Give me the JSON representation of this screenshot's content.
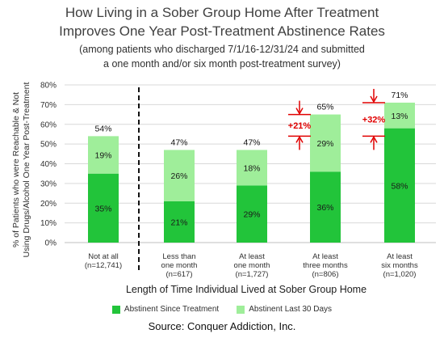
{
  "header": {
    "title_line1": "How Living in a Sober Group Home After Treatment",
    "title_line2": "Improves One Year Post-Treatment Abstinence Rates",
    "subtitle_line1": "(among patients who discharged 7/1/16-12/31/24 and submitted",
    "subtitle_line2": "a one month and/or six month post-treatment survey)"
  },
  "source": "Source:  Conquer Addiction, Inc.",
  "colors": {
    "abstinent_since": "#22c43a",
    "abstinent_last30": "#9fee9a",
    "annotation": "#e00000",
    "gridline": "#d9d9d9"
  },
  "chart_data": {
    "type": "bar",
    "stacked": true,
    "ylabel": "% of Patients who were Reachable & Not Using Drugs/Alcohol One Year Post-Treatment",
    "xlabel": "Length of Time Individual Lived at Sober Group Home",
    "ylim": [
      0,
      80
    ],
    "yticks": [
      "0%",
      "10%",
      "20%",
      "30%",
      "40%",
      "50%",
      "60%",
      "70%",
      "80%"
    ],
    "ytick_values": [
      0,
      10,
      20,
      30,
      40,
      50,
      60,
      70,
      80
    ],
    "grid": true,
    "legend_position": "bottom",
    "categories": [
      [
        "Not at all",
        "(n=12,741)"
      ],
      [
        "Less than",
        "one month",
        "(n=617)"
      ],
      [
        "At least",
        "one month",
        "(n=1,727)"
      ],
      [
        "At least",
        "three months",
        "(n=806)"
      ],
      [
        "At least",
        "six months",
        "(n=1,020)"
      ]
    ],
    "series": [
      {
        "name": "Abstinent Since Treatment",
        "values": [
          35,
          21,
          29,
          36,
          58
        ],
        "labels": [
          "35%",
          "21%",
          "29%",
          "36%",
          "58%"
        ]
      },
      {
        "name": "Abstinent Last 30 Days",
        "values": [
          19,
          26,
          18,
          29,
          13
        ],
        "labels": [
          "19%",
          "26%",
          "18%",
          "29%",
          "13%"
        ]
      }
    ],
    "totals": [
      "54%",
      "47%",
      "47%",
      "65%",
      "71%"
    ],
    "divider_after_category": 0,
    "annotations": [
      {
        "category": 3,
        "text": "+21%"
      },
      {
        "category": 4,
        "text": "+32%"
      }
    ]
  }
}
